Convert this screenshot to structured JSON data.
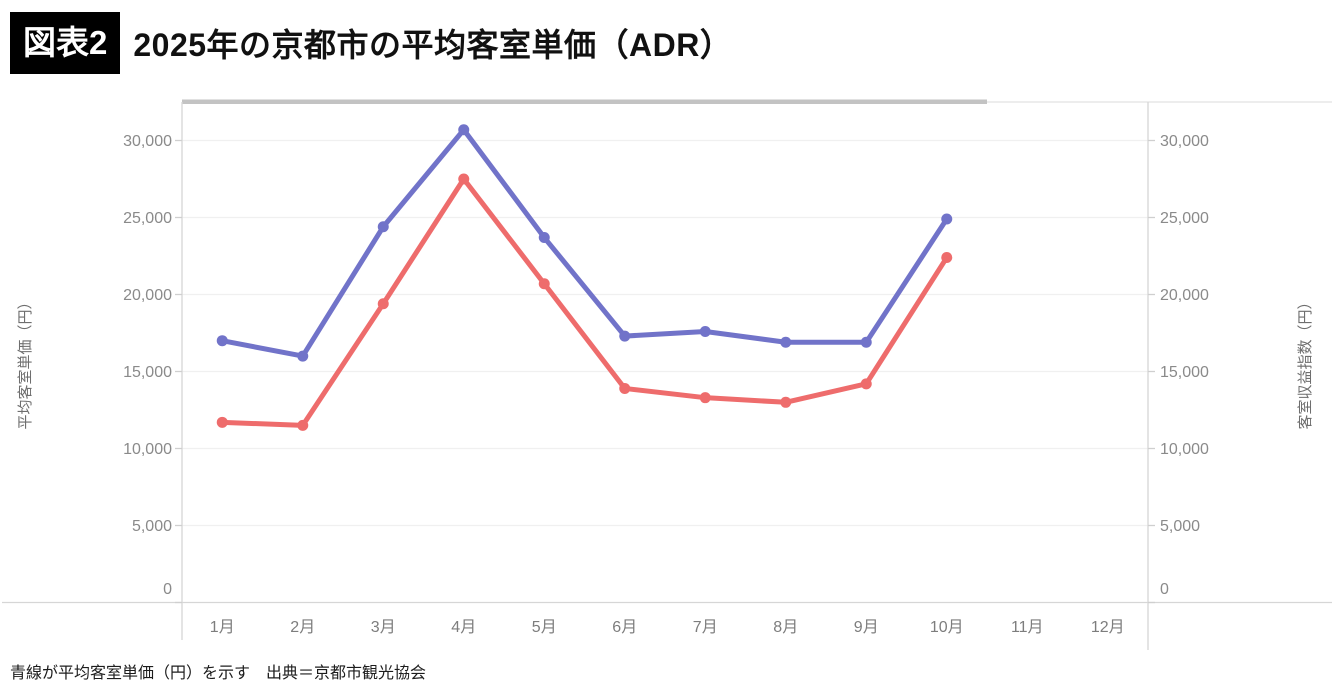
{
  "header": {
    "badge": "図表2",
    "title": "2025年の京都市の平均客室単価（ADR）"
  },
  "caption": {
    "text": "青線が平均客室単価（円）を示す　出典＝京都市観光協会"
  },
  "chart_data": {
    "type": "line",
    "title": "2025年の京都市の平均客室単価（ADR）",
    "categories": [
      "1月",
      "2月",
      "3月",
      "4月",
      "5月",
      "6月",
      "7月",
      "8月",
      "9月",
      "10月",
      "11月",
      "12月"
    ],
    "series": [
      {
        "name": "客室収益指数（円）",
        "axis": "right",
        "color": "#ee6c6c",
        "values": [
          11700,
          11500,
          19400,
          27500,
          20700,
          13900,
          13300,
          13000,
          14200,
          22400,
          null,
          null
        ]
      },
      {
        "name": "平均客室単価（円）",
        "axis": "left",
        "color": "#7173c9",
        "values": [
          17000,
          16000,
          24400,
          30700,
          23700,
          17300,
          17600,
          16900,
          16900,
          24900,
          null,
          null
        ]
      }
    ],
    "left_axis_label": "平均客室単価（円）",
    "right_axis_label": "客室収益指数（円）",
    "yticks": [
      {
        "value": 0,
        "label": "0"
      },
      {
        "value": 5000,
        "label": "5,000"
      },
      {
        "value": 10000,
        "label": "10,000"
      },
      {
        "value": 15000,
        "label": "15,000"
      },
      {
        "value": 20000,
        "label": "20,000"
      },
      {
        "value": 25000,
        "label": "25,000"
      },
      {
        "value": 30000,
        "label": "30,000"
      }
    ],
    "ylim": [
      0,
      32500
    ],
    "grid": true,
    "legend": "none"
  }
}
